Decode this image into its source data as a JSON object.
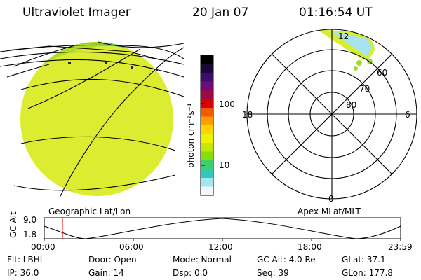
{
  "header": {
    "title": "Ultraviolet Imager",
    "date": "20 Jan 07",
    "time": "01:16:54 UT"
  },
  "colorbar": {
    "unit_label": "photon cm⁻²s⁻¹",
    "ticks": [
      "100",
      "10"
    ],
    "colors": [
      "#000000",
      "#1c0838",
      "#3a0e6a",
      "#6a0e7a",
      "#9a0a4a",
      "#d80000",
      "#f25a00",
      "#ff9c00",
      "#ffd400",
      "#eef200",
      "#c6e800",
      "#84de10",
      "#3fcf6a",
      "#2ec8c2",
      "#a6e4f2",
      "#f4f6ff"
    ]
  },
  "earth_panel": {
    "label": "Geographic Lat/Lon",
    "disk_color": "#dcec30"
  },
  "polar_panel": {
    "label": "Apex MLat/MLT",
    "mlt_labels": {
      "top": "12",
      "left": "18",
      "right": "6",
      "bottom": "0"
    },
    "lat_labels": [
      "60",
      "70",
      "80"
    ]
  },
  "altitude_plot": {
    "ylabel": "GC Alt",
    "yticks": [
      "9.0",
      "1.8"
    ],
    "xticks": [
      "00:00",
      "06:00",
      "12:00",
      "18:00",
      "23:59"
    ],
    "marker_time": "01:16:54"
  },
  "footer": {
    "flt": "Flt: LBHL",
    "door": "Door: Open",
    "mode": "Mode: Normal",
    "gc_alt": "GC Alt: 4.0 Re",
    "glat": "GLat:  37.1",
    "ip": "IP: 36.0",
    "gain": "Gain: 14",
    "dsp": "Dsp:    0.0",
    "seq": "Seq: 39",
    "glon": "GLon: 177.8"
  }
}
